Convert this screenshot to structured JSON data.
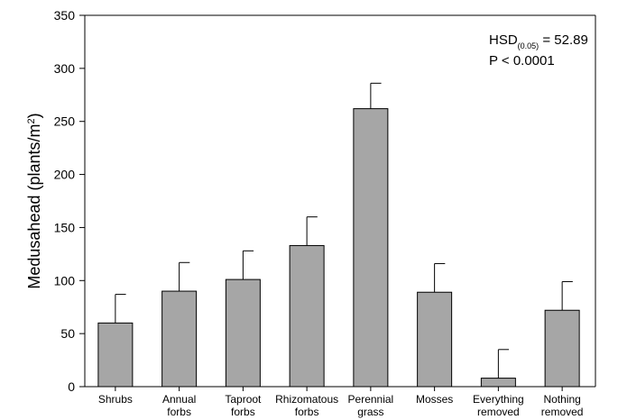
{
  "chart_data": {
    "type": "bar",
    "categories": [
      [
        "Shrubs"
      ],
      [
        "Annual",
        "forbs"
      ],
      [
        "Taproot",
        "forbs"
      ],
      [
        "Rhizomatous",
        "forbs"
      ],
      [
        "Perennial",
        "grass"
      ],
      [
        "Mosses"
      ],
      [
        "Everything",
        "removed"
      ],
      [
        "Nothing",
        "removed"
      ]
    ],
    "values": [
      60,
      90,
      101,
      133,
      262,
      89,
      8,
      72
    ],
    "errors": [
      27,
      27,
      27,
      27,
      24,
      27,
      27,
      27
    ],
    "ylim": [
      0,
      350
    ],
    "yticks": [
      0,
      50,
      100,
      150,
      200,
      250,
      300,
      350
    ],
    "ylabel": {
      "main": "Medusahead (plants/m",
      "sup": "2",
      "end": ")"
    },
    "xlabel": "",
    "annotations": {
      "hsd_prefix": "HSD",
      "hsd_sub": "(0.05)",
      "hsd_suffix": " = 52.89",
      "p_value": "P < 0.0001"
    },
    "bar_color": "#a6a6a6",
    "grid": false
  }
}
